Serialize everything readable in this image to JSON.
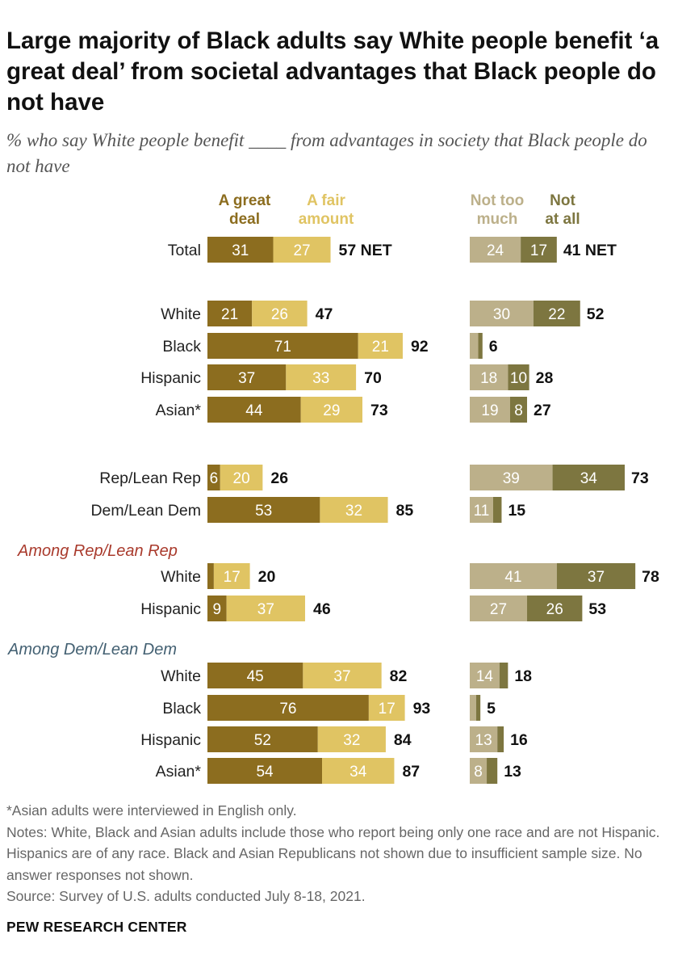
{
  "title": "Large majority of Black adults say White people benefit ‘a great deal’ from societal advantages that Black people do not have",
  "subtitle": "% who say White people benefit ____ from advantages in society that Black people do not have",
  "chart_data": {
    "type": "bar",
    "orientation": "horizontal-stacked-diverging",
    "legend": {
      "left": [
        {
          "key": "great_deal",
          "lines": [
            "A great",
            "deal"
          ],
          "color": "#8c6d1f"
        },
        {
          "key": "fair_amount",
          "lines": [
            "A fair",
            "amount"
          ],
          "color": "#e0c463"
        }
      ],
      "right": [
        {
          "key": "not_too_much",
          "lines": [
            "Not too",
            "much"
          ],
          "color": "#bcb08a"
        },
        {
          "key": "not_at_all",
          "lines": [
            "Not",
            "at all"
          ],
          "color": "#7d7640"
        }
      ]
    },
    "colors": {
      "great_deal": "#8c6d1f",
      "fair_amount": "#e0c463",
      "not_too_much": "#bcb08a",
      "not_at_all": "#7d7640",
      "rep_heading": "#a93a2c",
      "dem_heading": "#436072"
    },
    "sections": [
      {
        "heading": null,
        "rows": [
          {
            "label": "Total",
            "great_deal": 31,
            "fair_amount": 27,
            "net_left": "57 NET",
            "not_too_much": 24,
            "not_at_all": 17,
            "net_right": "41 NET"
          }
        ]
      },
      {
        "heading": null,
        "rows": [
          {
            "label": "White",
            "great_deal": 21,
            "fair_amount": 26,
            "net_left": "47",
            "not_too_much": 30,
            "not_at_all": 22,
            "net_right": "52"
          },
          {
            "label": "Black",
            "great_deal": 71,
            "fair_amount": 21,
            "net_left": "92",
            "not_too_much": null,
            "not_at_all": null,
            "net_right": "6"
          },
          {
            "label": "Hispanic",
            "great_deal": 37,
            "fair_amount": 33,
            "net_left": "70",
            "not_too_much": 18,
            "not_at_all": 10,
            "net_right": "28"
          },
          {
            "label": "Asian*",
            "great_deal": 44,
            "fair_amount": 29,
            "net_left": "73",
            "not_too_much": 19,
            "not_at_all": 8,
            "net_right": "27"
          }
        ]
      },
      {
        "heading": null,
        "rows": [
          {
            "label": "Rep/Lean Rep",
            "great_deal": 6,
            "fair_amount": 20,
            "net_left": "26",
            "not_too_much": 39,
            "not_at_all": 34,
            "net_right": "73"
          },
          {
            "label": "Dem/Lean Dem",
            "great_deal": 53,
            "fair_amount": 32,
            "net_left": "85",
            "not_too_much": 11,
            "not_at_all": null,
            "net_right": "15"
          }
        ]
      },
      {
        "heading": "Among Rep/Lean Rep",
        "heading_color": "rep_heading",
        "rows": [
          {
            "label": "White",
            "great_deal": null,
            "fair_amount": 17,
            "net_left": "20",
            "not_too_much": 41,
            "not_at_all": 37,
            "net_right": "78"
          },
          {
            "label": "Hispanic",
            "great_deal": 9,
            "fair_amount": 37,
            "net_left": "46",
            "not_too_much": 27,
            "not_at_all": 26,
            "net_right": "53"
          }
        ]
      },
      {
        "heading": "Among Dem/Lean Dem",
        "heading_color": "dem_heading",
        "rows": [
          {
            "label": "White",
            "great_deal": 45,
            "fair_amount": 37,
            "net_left": "82",
            "not_too_much": 14,
            "not_at_all": null,
            "net_right": "18"
          },
          {
            "label": "Black",
            "great_deal": 76,
            "fair_amount": 17,
            "net_left": "93",
            "not_too_much": null,
            "not_at_all": null,
            "net_right": "5"
          },
          {
            "label": "Hispanic",
            "great_deal": 52,
            "fair_amount": 32,
            "net_left": "84",
            "not_too_much": 13,
            "not_at_all": null,
            "net_right": "16"
          },
          {
            "label": "Asian*",
            "great_deal": 54,
            "fair_amount": 34,
            "net_left": "87",
            "not_too_much": 8,
            "not_at_all": null,
            "net_right": "13"
          }
        ]
      }
    ]
  },
  "notes": [
    "*Asian adults were interviewed in English only.",
    "Notes: White, Black and Asian adults include those who report being only one race and are not Hispanic. Hispanics are of any race. Black and Asian Republicans not shown due to insufficient sample size. No answer responses not shown.",
    "Source: Survey of U.S. adults conducted July 8-18, 2021."
  ],
  "brand": "PEW RESEARCH CENTER"
}
